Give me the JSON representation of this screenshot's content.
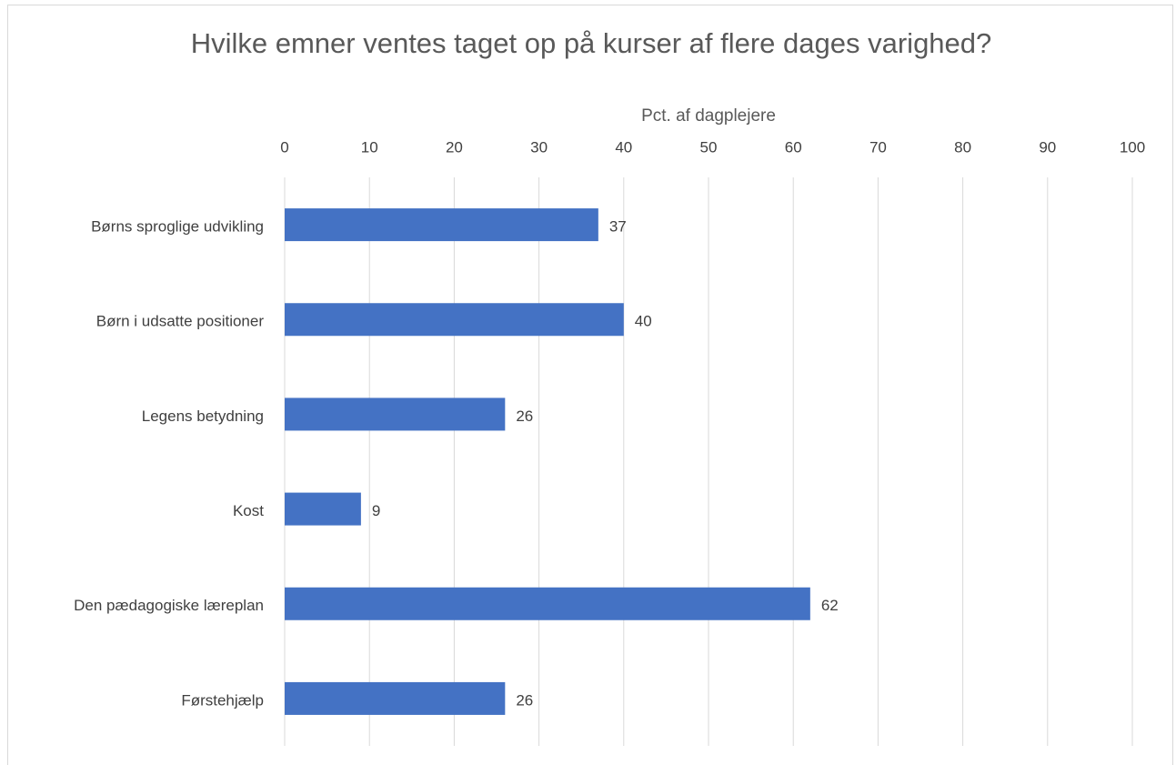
{
  "chart_data": {
    "type": "bar",
    "title": "Hvilke emner ventes taget op på kurser af flere dages varighed?",
    "x_label": "Pct. af dagplejere",
    "categories": [
      "Børns sproglige udvikling",
      "Børn i udsatte positioner",
      "Legens betydning",
      "Kost",
      "Den pædagogiske læreplan",
      "Førstehjælp"
    ],
    "values": [
      37,
      40,
      26,
      9,
      62,
      26
    ],
    "color": "#4472c4",
    "xlim": [
      0,
      100
    ],
    "xticks": [
      0,
      10,
      20,
      30,
      40,
      50,
      60,
      70,
      80,
      90,
      100
    ],
    "grid": true
  }
}
